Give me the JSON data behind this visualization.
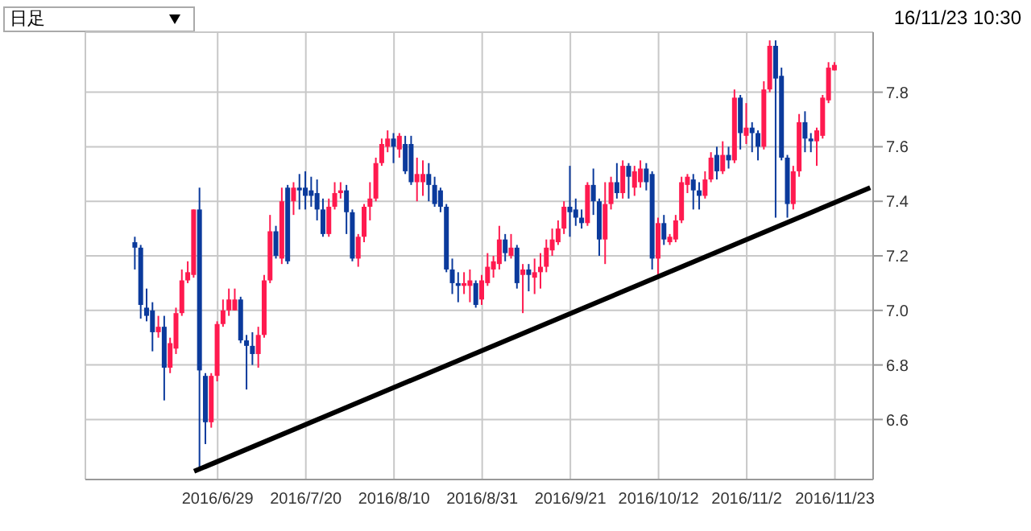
{
  "chart_data": {
    "type": "candlestick",
    "categories": [
      null,
      null,
      null,
      null,
      null,
      null,
      null,
      null,
      null,
      null,
      null,
      null,
      null,
      null,
      null,
      null,
      null,
      null,
      null,
      null,
      null,
      null,
      "2016/6/29",
      null,
      null,
      null,
      null,
      null,
      null,
      null,
      null,
      null,
      null,
      null,
      null,
      null,
      null,
      "2016/7/20",
      null,
      null,
      null,
      null,
      null,
      null,
      null,
      null,
      null,
      null,
      null,
      null,
      null,
      null,
      "2016/8/10",
      null,
      null,
      null,
      null,
      null,
      null,
      null,
      null,
      null,
      null,
      null,
      null,
      null,
      null,
      "2016/8/31",
      null,
      null,
      null,
      null,
      null,
      null,
      null,
      null,
      null,
      null,
      null,
      null,
      null,
      null,
      "2016/9/21",
      null,
      null,
      null,
      null,
      null,
      null,
      null,
      null,
      null,
      null,
      null,
      null,
      null,
      null,
      "2016/10/12",
      null,
      null,
      null,
      null,
      null,
      null,
      null,
      null,
      null,
      null,
      null,
      null,
      null,
      null,
      "2016/11/2",
      null,
      null,
      null,
      null,
      null,
      null,
      null,
      null,
      null,
      null,
      null,
      null,
      null,
      null,
      "2016/11/23",
      null,
      null,
      null,
      null,
      null,
      null
    ],
    "ohlc": [
      null,
      null,
      null,
      null,
      null,
      null,
      null,
      null,
      [
        7.25,
        7.27,
        7.15,
        7.23
      ],
      [
        7.23,
        7.24,
        6.97,
        7.02
      ],
      [
        7.01,
        7.08,
        6.96,
        6.98
      ],
      [
        7.0,
        7.03,
        6.85,
        6.92
      ],
      [
        6.92,
        6.98,
        6.9,
        6.94
      ],
      [
        6.94,
        6.98,
        6.67,
        6.79
      ],
      [
        6.79,
        6.9,
        6.77,
        6.88
      ],
      [
        6.86,
        7.01,
        6.84,
        6.99
      ],
      [
        6.99,
        7.15,
        6.98,
        7.11
      ],
      [
        7.11,
        7.18,
        7.1,
        7.14
      ],
      [
        7.13,
        7.37,
        7.12,
        7.37
      ],
      [
        7.37,
        7.45,
        6.42,
        6.78
      ],
      [
        6.76,
        6.77,
        6.51,
        6.59
      ],
      [
        6.59,
        6.77,
        6.57,
        6.76
      ],
      [
        6.76,
        6.96,
        6.74,
        6.95
      ],
      [
        6.95,
        7.04,
        6.94,
        7.0
      ],
      [
        7.0,
        7.08,
        6.98,
        7.04
      ],
      [
        7.0,
        7.08,
        7.0,
        7.04
      ],
      [
        7.04,
        7.05,
        6.88,
        6.89
      ],
      [
        6.89,
        6.91,
        6.71,
        6.87
      ],
      [
        6.87,
        6.92,
        6.8,
        6.84
      ],
      [
        6.84,
        6.94,
        6.79,
        6.91
      ],
      [
        6.91,
        7.13,
        6.9,
        7.11
      ],
      [
        7.11,
        7.35,
        7.1,
        7.29
      ],
      [
        7.29,
        7.31,
        7.19,
        7.2
      ],
      [
        7.19,
        7.45,
        7.17,
        7.4
      ],
      [
        7.45,
        7.46,
        7.17,
        7.18
      ],
      [
        7.4,
        7.47,
        7.35,
        7.45
      ],
      [
        7.45,
        7.5,
        7.37,
        7.44
      ],
      [
        7.45,
        7.51,
        7.37,
        7.42
      ],
      [
        7.44,
        7.49,
        7.38,
        7.42
      ],
      [
        7.43,
        7.48,
        7.33,
        7.37
      ],
      [
        7.37,
        7.41,
        7.27,
        7.28
      ],
      [
        7.28,
        7.41,
        7.27,
        7.38
      ],
      [
        7.38,
        7.47,
        7.37,
        7.43
      ],
      [
        7.43,
        7.47,
        7.41,
        7.44
      ],
      [
        7.44,
        7.46,
        7.28,
        7.36
      ],
      [
        7.36,
        7.37,
        7.18,
        7.19
      ],
      [
        7.19,
        7.28,
        7.16,
        7.27
      ],
      [
        7.27,
        7.39,
        7.25,
        7.38
      ],
      [
        7.38,
        7.47,
        7.33,
        7.41
      ],
      [
        7.41,
        7.56,
        7.4,
        7.54
      ],
      [
        7.54,
        7.63,
        7.53,
        7.61
      ],
      [
        7.6,
        7.66,
        7.58,
        7.63
      ],
      [
        7.63,
        7.65,
        7.54,
        7.6
      ],
      [
        7.59,
        7.65,
        7.56,
        7.64
      ],
      [
        7.61,
        7.64,
        7.5,
        7.51
      ],
      [
        7.61,
        7.64,
        7.46,
        7.47
      ],
      [
        7.47,
        7.56,
        7.4,
        7.5
      ],
      [
        7.47,
        7.55,
        7.42,
        7.5
      ],
      [
        7.5,
        7.54,
        7.4,
        7.46
      ],
      [
        7.46,
        7.49,
        7.38,
        7.39
      ],
      [
        7.44,
        7.45,
        7.36,
        7.38
      ],
      [
        7.38,
        7.39,
        7.14,
        7.15
      ],
      [
        7.15,
        7.19,
        7.06,
        7.1
      ],
      [
        7.1,
        7.14,
        7.03,
        7.09
      ],
      [
        7.09,
        7.14,
        7.06,
        7.1
      ],
      [
        7.09,
        7.15,
        7.03,
        7.11
      ],
      [
        7.1,
        7.11,
        7.01,
        7.02
      ],
      [
        7.04,
        7.13,
        7.02,
        7.11
      ],
      [
        7.1,
        7.21,
        7.09,
        7.16
      ],
      [
        7.15,
        7.2,
        7.12,
        7.18
      ],
      [
        7.17,
        7.31,
        7.15,
        7.26
      ],
      [
        7.26,
        7.28,
        7.18,
        7.21
      ],
      [
        7.2,
        7.28,
        7.19,
        7.23
      ],
      [
        7.23,
        7.24,
        7.08,
        7.1
      ],
      [
        7.13,
        7.17,
        6.99,
        7.15
      ],
      [
        7.15,
        7.17,
        7.07,
        7.13
      ],
      [
        7.12,
        7.19,
        7.06,
        7.14
      ],
      [
        7.14,
        7.21,
        7.08,
        7.16
      ],
      [
        7.16,
        7.26,
        7.14,
        7.23
      ],
      [
        7.22,
        7.3,
        7.2,
        7.26
      ],
      [
        7.25,
        7.33,
        7.24,
        7.3
      ],
      [
        7.3,
        7.4,
        7.28,
        7.38
      ],
      [
        7.38,
        7.53,
        7.27,
        7.36
      ],
      [
        7.37,
        7.41,
        7.31,
        7.34
      ],
      [
        7.34,
        7.37,
        7.3,
        7.32
      ],
      [
        7.32,
        7.47,
        7.31,
        7.46
      ],
      [
        7.46,
        7.52,
        7.35,
        7.4
      ],
      [
        7.4,
        7.41,
        7.2,
        7.26
      ],
      [
        7.26,
        7.47,
        7.17,
        7.39
      ],
      [
        7.39,
        7.49,
        7.37,
        7.47
      ],
      [
        7.47,
        7.54,
        7.41,
        7.43
      ],
      [
        7.43,
        7.55,
        7.41,
        7.53
      ],
      [
        7.53,
        7.54,
        7.41,
        7.49
      ],
      [
        7.45,
        7.53,
        7.42,
        7.51
      ],
      [
        7.47,
        7.55,
        7.45,
        7.52
      ],
      [
        7.52,
        7.54,
        7.44,
        7.47
      ],
      [
        7.5,
        7.51,
        7.15,
        7.19
      ],
      [
        7.19,
        7.34,
        7.13,
        7.32
      ],
      [
        7.32,
        7.35,
        7.24,
        7.26
      ],
      [
        7.25,
        7.28,
        7.24,
        7.27
      ],
      [
        7.26,
        7.35,
        7.25,
        7.33
      ],
      [
        7.33,
        7.49,
        7.32,
        7.47
      ],
      [
        7.46,
        7.5,
        7.43,
        7.49
      ],
      [
        7.48,
        7.5,
        7.37,
        7.44
      ],
      [
        7.44,
        7.47,
        7.37,
        7.42
      ],
      [
        7.42,
        7.51,
        7.41,
        7.48
      ],
      [
        7.48,
        7.58,
        7.47,
        7.56
      ],
      [
        7.57,
        7.6,
        7.48,
        7.51
      ],
      [
        7.51,
        7.62,
        7.5,
        7.57
      ],
      [
        7.57,
        7.6,
        7.52,
        7.55
      ],
      [
        7.55,
        7.81,
        7.54,
        7.78
      ],
      [
        7.78,
        7.79,
        7.59,
        7.65
      ],
      [
        7.64,
        7.76,
        7.61,
        7.67
      ],
      [
        7.67,
        7.69,
        7.58,
        7.65
      ],
      [
        7.65,
        7.66,
        7.55,
        7.6
      ],
      [
        7.6,
        7.84,
        7.59,
        7.81
      ],
      [
        7.81,
        7.99,
        7.8,
        7.97
      ],
      [
        7.97,
        7.99,
        7.34,
        7.85
      ],
      [
        7.86,
        7.89,
        7.55,
        7.56
      ],
      [
        7.56,
        7.57,
        7.34,
        7.39
      ],
      [
        7.39,
        7.53,
        7.37,
        7.51
      ],
      [
        7.51,
        7.72,
        7.49,
        7.69
      ],
      [
        7.69,
        7.73,
        7.58,
        7.63
      ],
      [
        7.63,
        7.65,
        7.58,
        7.62
      ],
      [
        7.62,
        7.67,
        7.53,
        7.66
      ],
      [
        7.64,
        7.79,
        7.63,
        7.78
      ],
      [
        7.77,
        7.91,
        7.76,
        7.89
      ],
      [
        7.88,
        7.91,
        7.88,
        7.9
      ],
      null,
      null,
      null,
      null,
      null,
      null
    ],
    "colors": [
      null,
      null,
      null,
      null,
      null,
      null,
      null,
      null,
      "#0b3a9c",
      "#0b3a9c",
      "#0b3a9c",
      "#0b3a9c",
      "#ff1a4f",
      "#0b3a9c",
      "#ff1a4f",
      "#ff1a4f",
      "#ff1a4f",
      "#ff1a4f",
      "#ff1a4f",
      "#0b3a9c",
      "#0b3a9c",
      "#ff1a4f",
      "#ff1a4f",
      "#ff1a4f",
      "#ff1a4f",
      "#ff1a4f",
      "#0b3a9c",
      "#0b3a9c",
      "#0b3a9c",
      "#ff1a4f",
      "#ff1a4f",
      "#ff1a4f",
      "#0b3a9c",
      "#ff1a4f",
      "#0b3a9c",
      "#ff1a4f",
      "#0b3a9c",
      "#0b3a9c",
      "#0b3a9c",
      "#0b3a9c",
      "#0b3a9c",
      "#ff1a4f",
      "#ff1a4f",
      "#ff1a4f",
      "#0b3a9c",
      "#0b3a9c",
      "#ff1a4f",
      "#ff1a4f",
      "#ff1a4f",
      "#ff1a4f",
      "#ff1a4f",
      "#ff1a4f",
      "#0b3a9c",
      "#ff1a4f",
      "#0b3a9c",
      "#0b3a9c",
      "#ff1a4f",
      "#ff1a4f",
      "#0b3a9c",
      "#0b3a9c",
      "#0b3a9c",
      "#0b3a9c",
      "#0b3a9c",
      "#0b3a9c",
      "#ff1a4f",
      "#ff1a4f",
      "#0b3a9c",
      "#ff1a4f",
      "#ff1a4f",
      "#ff1a4f",
      "#ff1a4f",
      "#0b3a9c",
      "#ff1a4f",
      "#0b3a9c",
      "#ff1a4f",
      "#0b3a9c",
      "#ff1a4f",
      "#ff1a4f",
      "#ff1a4f",
      "#ff1a4f",
      "#ff1a4f",
      "#ff1a4f",
      "#0b3a9c",
      "#0b3a9c",
      "#0b3a9c",
      "#ff1a4f",
      "#0b3a9c",
      "#0b3a9c",
      "#ff1a4f",
      "#ff1a4f",
      "#0b3a9c",
      "#ff1a4f",
      "#0b3a9c",
      "#ff1a4f",
      "#ff1a4f",
      "#0b3a9c",
      "#0b3a9c",
      "#ff1a4f",
      "#0b3a9c",
      "#ff1a4f",
      "#ff1a4f",
      "#ff1a4f",
      "#ff1a4f",
      "#0b3a9c",
      "#0b3a9c",
      "#ff1a4f",
      "#ff1a4f",
      "#0b3a9c",
      "#ff1a4f",
      "#0b3a9c",
      "#ff1a4f",
      "#0b3a9c",
      "#ff1a4f",
      "#0b3a9c",
      "#0b3a9c",
      "#ff1a4f",
      "#ff1a4f",
      "#0b3a9c",
      "#0b3a9c",
      "#0b3a9c",
      "#ff1a4f",
      "#ff1a4f",
      "#0b3a9c",
      "#0b3a9c",
      "#ff1a4f",
      "#ff1a4f",
      "#ff1a4f",
      "#ff1a4f",
      null,
      null,
      null,
      null,
      null,
      null
    ],
    "series": [
      {
        "type": "line",
        "color": "#000000",
        "values": [
          null,
          null,
          null,
          null,
          null,
          null,
          null,
          null,
          null,
          null,
          null,
          null,
          null,
          null,
          null,
          null,
          null,
          null,
          6.41,
          null,
          null,
          null,
          null,
          null,
          null,
          null,
          null,
          null,
          null,
          null,
          null,
          null,
          null,
          null,
          null,
          null,
          null,
          null,
          null,
          null,
          null,
          null,
          null,
          null,
          null,
          null,
          null,
          null,
          null,
          null,
          null,
          null,
          null,
          null,
          null,
          null,
          null,
          null,
          null,
          null,
          null,
          null,
          null,
          null,
          null,
          null,
          null,
          null,
          null,
          null,
          null,
          null,
          null,
          null,
          null,
          null,
          null,
          null,
          null,
          null,
          null,
          null,
          null,
          null,
          null,
          null,
          null,
          null,
          null,
          null,
          null,
          null,
          null,
          null,
          null,
          null,
          null,
          null,
          null,
          null,
          null,
          null,
          null,
          null,
          null,
          null,
          null,
          null,
          null,
          null,
          null,
          null,
          null,
          null,
          null,
          null,
          null,
          null,
          null,
          null,
          null,
          null,
          null,
          null,
          null,
          null,
          null,
          null,
          null,
          null,
          null,
          null,
          null,
          7.45
        ]
      }
    ],
    "ylim": [
      6.38,
      8.02
    ],
    "yticks": [
      6.6,
      6.8,
      {
        "value": 7,
        "label": "7.0"
      },
      7.2,
      7.4,
      7.6,
      7.8
    ],
    "grid": true,
    "annotations": [
      "日足",
      "16/11/23 10:30"
    ]
  }
}
